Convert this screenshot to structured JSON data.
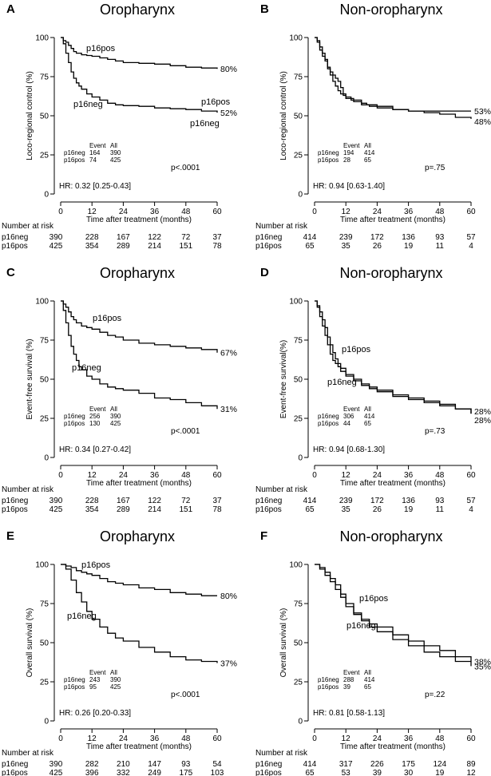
{
  "chart_data": [
    {
      "type": "line",
      "letter": "A",
      "title": "Oropharynx",
      "xlabel": "Time after treatment (months)",
      "ylabel": "Loco-regional control (%)",
      "xlim": [
        0,
        60
      ],
      "ylim": [
        0,
        100
      ],
      "xticks": [
        0,
        12,
        24,
        36,
        48,
        60
      ],
      "yticks": [
        0,
        25,
        50,
        75,
        100
      ],
      "series": [
        {
          "name": "p16pos",
          "end_label": "80%",
          "x": [
            0,
            1,
            2,
            3,
            4,
            5,
            6,
            8,
            10,
            12,
            15,
            18,
            21,
            24,
            30,
            36,
            42,
            48,
            54,
            60
          ],
          "y": [
            100,
            98,
            97,
            95,
            93,
            91,
            90,
            89,
            88.5,
            88,
            87,
            86,
            85,
            84,
            83.5,
            83,
            82,
            81,
            80.5,
            80
          ]
        },
        {
          "name": "p16neg",
          "end_label": "52%",
          "x": [
            0,
            1,
            2,
            3,
            4,
            5,
            6,
            7,
            8,
            10,
            12,
            15,
            18,
            21,
            24,
            30,
            36,
            42,
            48,
            54,
            60
          ],
          "y": [
            100,
            96,
            90,
            84,
            78,
            74,
            71,
            69,
            67,
            64,
            62,
            60,
            58,
            57,
            56.5,
            56,
            55,
            54.5,
            54,
            53,
            52
          ]
        }
      ],
      "event_table": {
        "header": [
          "Event",
          "All"
        ],
        "rows": [
          [
            "p16neg",
            "164",
            "390"
          ],
          [
            "p16pos",
            "74",
            "425"
          ]
        ]
      },
      "hr": "HR: 0.32 [0.25-0.43]",
      "pvalue": "p<.0001",
      "risk": {
        "title": "Number at risk",
        "rows": [
          {
            "label": "p16neg",
            "values": [
              "390",
              "228",
              "167",
              "122",
              "72",
              "37"
            ]
          },
          {
            "label": "p16pos",
            "values": [
              "425",
              "354",
              "289",
              "214",
              "151",
              "78"
            ]
          }
        ]
      }
    },
    {
      "type": "line",
      "letter": "B",
      "title": "Non-oropharynx",
      "xlabel": "Time after treatment (months)",
      "ylabel": "Loco-regional control (%)",
      "xlim": [
        0,
        60
      ],
      "ylim": [
        0,
        100
      ],
      "xticks": [
        0,
        12,
        24,
        36,
        48,
        60
      ],
      "yticks": [
        0,
        25,
        50,
        75,
        100
      ],
      "series": [
        {
          "name": "p16pos",
          "end_label": "53%",
          "x": [
            0,
            1,
            2,
            3,
            4,
            5,
            6,
            7,
            8,
            9,
            10,
            11,
            12,
            14,
            16,
            18,
            20,
            24,
            30,
            36,
            42,
            48,
            54,
            60
          ],
          "y": [
            100,
            97,
            92,
            88,
            85,
            80,
            78,
            76,
            74,
            72,
            68,
            63,
            62,
            60,
            60,
            58,
            57,
            56,
            54,
            53,
            53,
            53,
            53,
            53
          ]
        },
        {
          "name": "p16neg",
          "end_label": "48%",
          "x": [
            0,
            1,
            2,
            3,
            4,
            5,
            6,
            7,
            8,
            9,
            10,
            12,
            15,
            18,
            21,
            24,
            30,
            36,
            42,
            48,
            54,
            60
          ],
          "y": [
            100,
            98,
            94,
            90,
            86,
            81,
            76,
            72,
            69,
            66,
            64,
            61,
            59,
            57,
            56,
            55,
            54,
            53,
            52,
            51,
            49,
            48
          ]
        }
      ],
      "event_table": {
        "header": [
          "Event",
          "All"
        ],
        "rows": [
          [
            "p16neg",
            "194",
            "414"
          ],
          [
            "p16pos",
            "28",
            "65"
          ]
        ]
      },
      "hr": "HR: 0.94 [0.63-1.40]",
      "pvalue": "p=.75",
      "risk": {
        "title": "Number at risk",
        "rows": [
          {
            "label": "p16neg",
            "values": [
              "414",
              "239",
              "172",
              "136",
              "93",
              "57"
            ]
          },
          {
            "label": "p16pos",
            "values": [
              "65",
              "35",
              "26",
              "19",
              "11",
              "4"
            ]
          }
        ]
      }
    },
    {
      "type": "line",
      "letter": "C",
      "title": "Oropharynx",
      "xlabel": "Time after treatment (months)",
      "ylabel": "Event-free survival (%)",
      "xlim": [
        0,
        60
      ],
      "ylim": [
        0,
        100
      ],
      "xticks": [
        0,
        12,
        24,
        36,
        48,
        60
      ],
      "yticks": [
        0,
        25,
        50,
        75,
        100
      ],
      "series": [
        {
          "name": "p16pos",
          "end_label": "67%",
          "x": [
            0,
            1,
            2,
            3,
            4,
            5,
            6,
            8,
            10,
            12,
            15,
            18,
            21,
            24,
            30,
            36,
            42,
            48,
            54,
            60
          ],
          "y": [
            100,
            98,
            96,
            93,
            90,
            88,
            86,
            84,
            83,
            82,
            80,
            78,
            77,
            75,
            73,
            72,
            71,
            70,
            69,
            67
          ]
        },
        {
          "name": "p16neg",
          "end_label": "31%",
          "x": [
            0,
            1,
            2,
            3,
            4,
            5,
            6,
            7,
            8,
            10,
            12,
            15,
            18,
            21,
            24,
            30,
            36,
            42,
            48,
            54,
            60
          ],
          "y": [
            100,
            94,
            86,
            78,
            71,
            66,
            62,
            58,
            56,
            52,
            50,
            47,
            45,
            44,
            43,
            41,
            38,
            37,
            35,
            33,
            31
          ]
        }
      ],
      "event_table": {
        "header": [
          "Event",
          "All"
        ],
        "rows": [
          [
            "p16neg",
            "256",
            "390"
          ],
          [
            "p16pos",
            "130",
            "425"
          ]
        ]
      },
      "hr": "HR: 0.34 [0.27-0.42]",
      "pvalue": "p<.0001",
      "risk": {
        "title": "Number at risk",
        "rows": [
          {
            "label": "p16neg",
            "values": [
              "390",
              "228",
              "167",
              "122",
              "72",
              "37"
            ]
          },
          {
            "label": "p16pos",
            "values": [
              "425",
              "354",
              "289",
              "214",
              "151",
              "78"
            ]
          }
        ]
      }
    },
    {
      "type": "line",
      "letter": "D",
      "title": "Non-oropharynx",
      "xlabel": "Time after treatment (months)",
      "ylabel": "Event-free survival(%)",
      "xlim": [
        0,
        60
      ],
      "ylim": [
        0,
        100
      ],
      "xticks": [
        0,
        12,
        24,
        36,
        48,
        60
      ],
      "yticks": [
        0,
        25,
        50,
        75,
        100
      ],
      "series": [
        {
          "name": "p16pos",
          "end_label": "28%",
          "x": [
            0,
            1,
            2,
            3,
            4,
            5,
            6,
            7,
            8,
            9,
            10,
            12,
            15,
            18,
            21,
            24,
            30,
            36,
            42,
            48,
            54,
            60
          ],
          "y": [
            100,
            96,
            90,
            84,
            78,
            72,
            66,
            62,
            60,
            58,
            55,
            52,
            50,
            47,
            45,
            43,
            40,
            38,
            36,
            34,
            31,
            28
          ]
        },
        {
          "name": "p16neg",
          "end_label": "28%",
          "x": [
            0,
            1,
            2,
            3,
            4,
            5,
            6,
            7,
            8,
            9,
            10,
            12,
            15,
            18,
            21,
            24,
            30,
            36,
            42,
            48,
            54,
            60
          ],
          "y": [
            100,
            97,
            93,
            88,
            83,
            77,
            72,
            67,
            63,
            60,
            57,
            53,
            49,
            46,
            44,
            42,
            39,
            37,
            35,
            33,
            31,
            28
          ]
        }
      ],
      "event_table": {
        "header": [
          "Event",
          "All"
        ],
        "rows": [
          [
            "p16neg",
            "306",
            "414"
          ],
          [
            "p16pos",
            "44",
            "65"
          ]
        ]
      },
      "hr": "HR: 0.94 [0.68-1.30]",
      "pvalue": "p=.73",
      "risk": {
        "title": "Number at risk",
        "rows": [
          {
            "label": "p16neg",
            "values": [
              "414",
              "239",
              "172",
              "136",
              "93",
              "57"
            ]
          },
          {
            "label": "p16pos",
            "values": [
              "65",
              "35",
              "26",
              "19",
              "11",
              "4"
            ]
          }
        ]
      }
    },
    {
      "type": "line",
      "letter": "E",
      "title": "Oropharynx",
      "xlabel": "Time after treatment (months)",
      "ylabel": "Overall survival (%)",
      "xlim": [
        0,
        60
      ],
      "ylim": [
        0,
        100
      ],
      "xticks": [
        0,
        12,
        24,
        36,
        48,
        60
      ],
      "yticks": [
        0,
        25,
        50,
        75,
        100
      ],
      "series": [
        {
          "name": "p16pos",
          "end_label": "80%",
          "x": [
            0,
            2,
            4,
            6,
            8,
            10,
            12,
            15,
            18,
            21,
            24,
            30,
            36,
            42,
            48,
            54,
            60
          ],
          "y": [
            100,
            99,
            98,
            96,
            95,
            94,
            93,
            91,
            89,
            88,
            87,
            85,
            84,
            82,
            81,
            80,
            80
          ]
        },
        {
          "name": "p16neg",
          "end_label": "37%",
          "x": [
            0,
            2,
            4,
            6,
            8,
            10,
            12,
            15,
            18,
            21,
            24,
            30,
            36,
            42,
            48,
            54,
            60
          ],
          "y": [
            100,
            97,
            90,
            82,
            76,
            70,
            65,
            60,
            56,
            53,
            51,
            47,
            44,
            41,
            39,
            38,
            37
          ]
        }
      ],
      "event_table": {
        "header": [
          "Event",
          "All"
        ],
        "rows": [
          [
            "p16neg",
            "243",
            "390"
          ],
          [
            "p16pos",
            "95",
            "425"
          ]
        ]
      },
      "hr": "HR: 0.26 [0.20-0.33]",
      "pvalue": "p<.0001",
      "risk": {
        "title": "Number at risk",
        "rows": [
          {
            "label": "p16neg",
            "values": [
              "390",
              "282",
              "210",
              "147",
              "93",
              "54"
            ]
          },
          {
            "label": "p16pos",
            "values": [
              "425",
              "396",
              "332",
              "249",
              "175",
              "103"
            ]
          }
        ]
      }
    },
    {
      "type": "line",
      "letter": "F",
      "title": "Non-oropharynx",
      "xlabel": "Time after treatment (months)",
      "ylabel": "Overall survival (%)",
      "xlim": [
        0,
        60
      ],
      "ylim": [
        0,
        100
      ],
      "xticks": [
        0,
        12,
        24,
        36,
        48,
        60
      ],
      "yticks": [
        0,
        25,
        50,
        75,
        100
      ],
      "series": [
        {
          "name": "p16pos",
          "end_label": "38%",
          "x": [
            0,
            2,
            4,
            6,
            8,
            10,
            12,
            15,
            18,
            21,
            24,
            30,
            36,
            42,
            48,
            54,
            60
          ],
          "y": [
            100,
            97,
            93,
            89,
            84,
            79,
            73,
            68,
            65,
            62,
            60,
            55,
            51,
            48,
            45,
            41,
            38
          ]
        },
        {
          "name": "p16neg",
          "end_label": "35%",
          "x": [
            0,
            2,
            4,
            6,
            8,
            10,
            12,
            15,
            18,
            21,
            24,
            30,
            36,
            42,
            48,
            54,
            60
          ],
          "y": [
            100,
            98,
            95,
            91,
            87,
            81,
            75,
            69,
            64,
            60,
            57,
            52,
            48,
            44,
            41,
            38,
            35
          ]
        }
      ],
      "event_table": {
        "header": [
          "Event",
          "All"
        ],
        "rows": [
          [
            "p16neg",
            "288",
            "414"
          ],
          [
            "p16pos",
            "39",
            "65"
          ]
        ]
      },
      "hr": "HR: 0.81 [0.58-1.13]",
      "pvalue": "p=.22",
      "risk": {
        "title": "Number at risk",
        "rows": [
          {
            "label": "p16neg",
            "values": [
              "414",
              "317",
              "226",
              "175",
              "124",
              "89"
            ]
          },
          {
            "label": "p16pos",
            "values": [
              "65",
              "53",
              "39",
              "30",
              "19",
              "12"
            ]
          }
        ]
      }
    }
  ]
}
